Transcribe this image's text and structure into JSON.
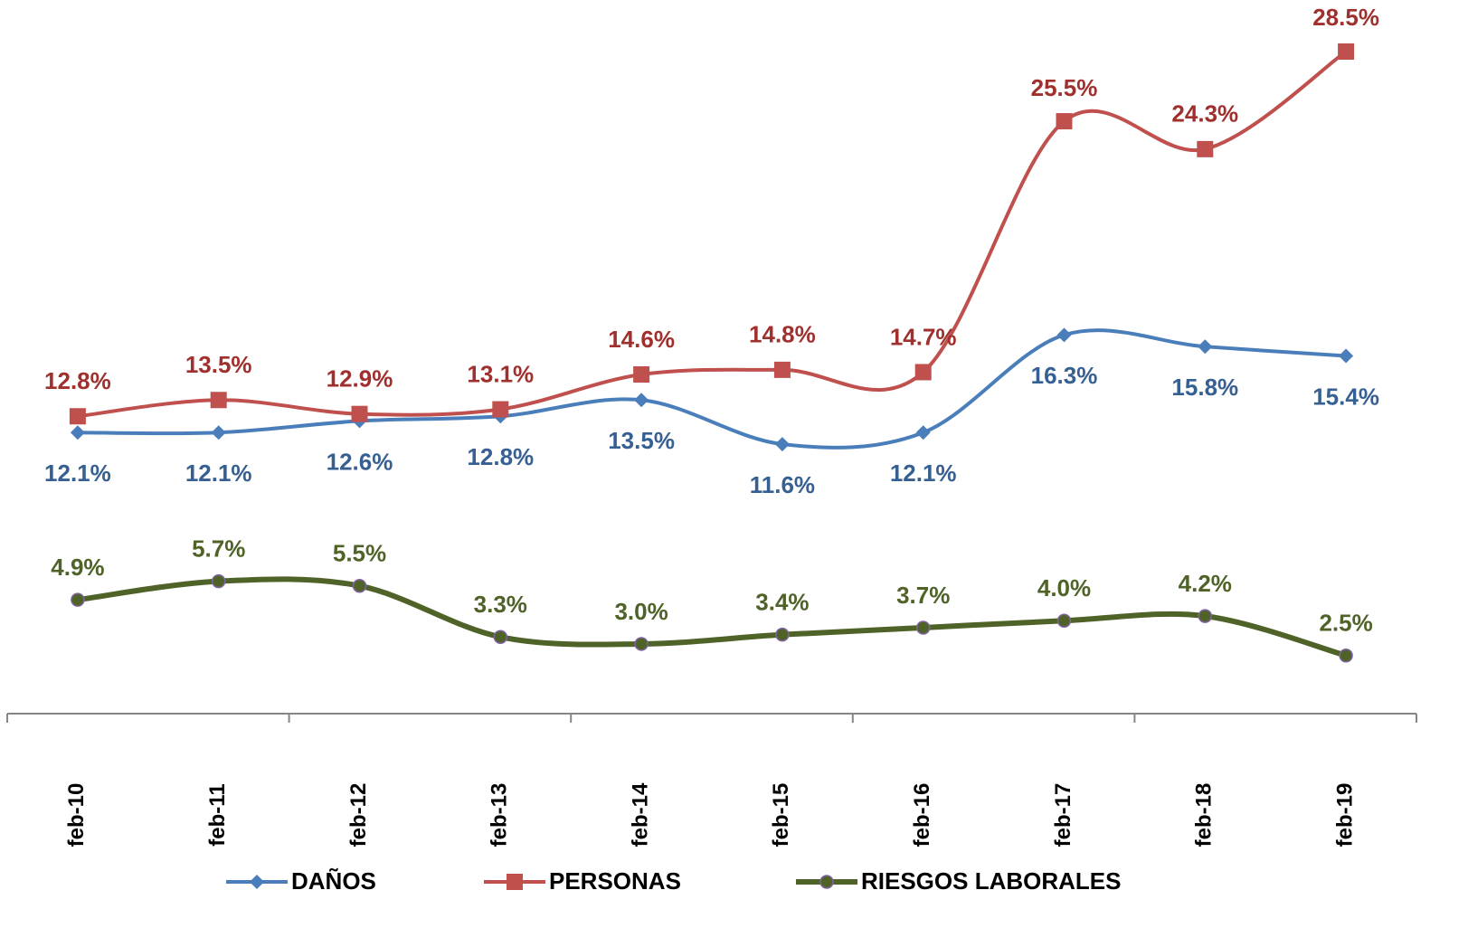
{
  "chart_data": {
    "type": "line",
    "categories": [
      "feb-10",
      "feb-11",
      "feb-12",
      "feb-13",
      "feb-14",
      "feb-15",
      "feb-16",
      "feb-17",
      "feb-18",
      "feb-19"
    ],
    "series": [
      {
        "name": "DAÑOS",
        "color": "#4a7ebb",
        "label_color": "#376092",
        "marker": "diamond",
        "values": [
          12.1,
          12.1,
          12.6,
          12.8,
          13.5,
          11.6,
          12.1,
          16.3,
          15.8,
          15.4
        ],
        "value_labels": [
          "12.1%",
          "12.1%",
          "12.6%",
          "12.8%",
          "13.5%",
          "11.6%",
          "12.1%",
          "16.3%",
          "15.8%",
          "15.4%"
        ]
      },
      {
        "name": "PERSONAS",
        "color": "#c0504d",
        "label_color": "#a0302d",
        "marker": "square",
        "values": [
          12.8,
          13.5,
          12.9,
          13.1,
          14.6,
          14.8,
          14.7,
          25.5,
          24.3,
          28.5
        ],
        "value_labels": [
          "12.8%",
          "13.5%",
          "12.9%",
          "13.1%",
          "14.6%",
          "14.8%",
          "14.7%",
          "25.5%",
          "24.3%",
          "28.5%"
        ]
      },
      {
        "name": "RIESGOS LABORALES",
        "color": "#4f6228",
        "label_color": "#4f6228",
        "marker": "circle",
        "values": [
          4.9,
          5.7,
          5.5,
          3.3,
          3.0,
          3.4,
          3.7,
          4.0,
          4.2,
          2.5
        ],
        "value_labels": [
          "4.9%",
          "5.7%",
          "5.5%",
          "3.3%",
          "3.0%",
          "3.4%",
          "3.7%",
          "4.0%",
          "4.2%",
          "2.5%"
        ]
      }
    ],
    "legend": "bottom",
    "grid": false
  }
}
